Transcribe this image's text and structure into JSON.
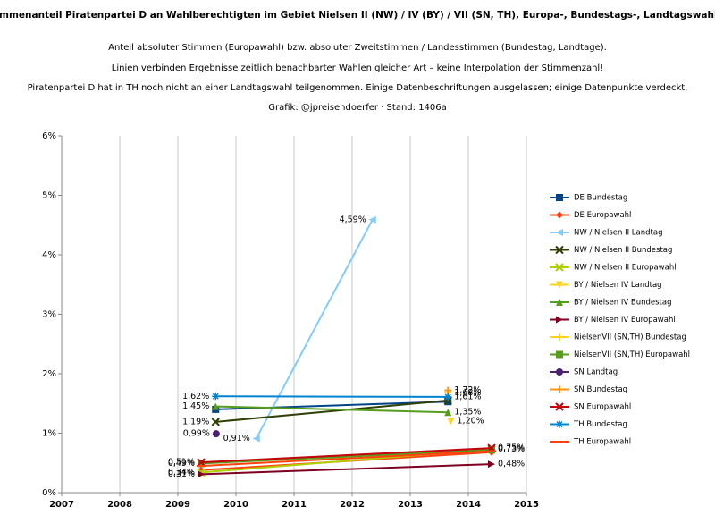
{
  "chart_data": {
    "type": "line",
    "title": "Stimmenanteil Piratenpartei D an Wahlberechtigten im Gebiet Nielsen II (NW) / IV (BY) / VII (SN, TH), Europa-, Bundestags-, Landtagswahlen",
    "subtitle": [
      "Anteil absoluter Stimmen (Europawahl) bzw. absoluter Zweitstimmen / Landesstimmen (Bundestag, Landtage).",
      "Linien verbinden Ergebnisse zeitlich benachbarter Wahlen gleicher Art – keine Interpolation der Stimmenzahl!",
      "Piratenpartei D hat in TH noch nicht an einer Landtagswahl teilgenommen. Einige Datenbeschriftungen ausgelassen; einige Datenpunkte verdeckt.",
      "Grafik: @jpreisendoerfer · Stand: 1406a"
    ],
    "xlim": [
      2007,
      2015
    ],
    "xticks": [
      2007,
      2008,
      2009,
      2010,
      2011,
      2012,
      2013,
      2014,
      2015
    ],
    "ylim": [
      0,
      6
    ],
    "yticks": [
      {
        "value": 0,
        "label": "0%"
      },
      {
        "value": 1,
        "label": "1%"
      },
      {
        "value": 2,
        "label": "2%"
      },
      {
        "value": 3,
        "label": "3%"
      },
      {
        "value": 4,
        "label": "4%"
      },
      {
        "value": 5,
        "label": "5%"
      },
      {
        "value": 6,
        "label": "6%"
      }
    ],
    "grid": "x",
    "series": [
      {
        "name": "DE Bundestag",
        "color": "#004586",
        "marker": "square",
        "x": [
          2009.65,
          2013.65
        ],
        "values": [
          1.4,
          1.53
        ],
        "value_labels": [
          null,
          null
        ]
      },
      {
        "name": "DE Europawahl",
        "color": "#ff420e",
        "marker": "diamond",
        "x": [
          2009.4,
          2014.4
        ],
        "values": [
          0.38,
          0.68
        ],
        "value_labels": [
          null,
          null
        ]
      },
      {
        "name": "NW / Nielsen II Landtag",
        "color": "#83caff",
        "marker": "triangle-left",
        "x": [
          2010.35,
          2012.35
        ],
        "values": [
          0.91,
          4.59
        ],
        "value_labels": [
          "0,91%",
          "4,59%"
        ]
      },
      {
        "name": "NW / Nielsen II Bundestag",
        "color": "#314004",
        "marker": "x",
        "x": [
          2009.65,
          2013.65
        ],
        "values": [
          1.19,
          1.55
        ],
        "value_labels": [
          "1,19%",
          null
        ]
      },
      {
        "name": "NW / Nielsen II Europawahl",
        "color": "#aecf00",
        "marker": "x",
        "x": [
          2009.4,
          2014.4
        ],
        "values": [
          0.34,
          0.73
        ],
        "value_labels": [
          "0,34%",
          "0,73%"
        ]
      },
      {
        "name": "BY / Nielsen IV Landtag",
        "color": "#ffd320",
        "marker": "triangle-down",
        "x": [
          2013.7
        ],
        "values": [
          1.2
        ],
        "value_labels": [
          "1,20%"
        ]
      },
      {
        "name": "BY / Nielsen IV Bundestag",
        "color": "#579d1c",
        "marker": "triangle-up",
        "x": [
          2009.65,
          2013.65
        ],
        "values": [
          1.45,
          1.35
        ],
        "value_labels": [
          "1,45%",
          "1,35%"
        ]
      },
      {
        "name": "BY / Nielsen IV Europawahl",
        "color": "#7e0021",
        "marker": "triangle-right",
        "x": [
          2009.4,
          2014.4
        ],
        "values": [
          0.31,
          0.48
        ],
        "value_labels": [
          "0,31%",
          "0,48%"
        ]
      },
      {
        "name": "NielsenVII (SN,TH) Bundestag",
        "color": "#ffd320",
        "marker": "plus",
        "x": [
          2013.65
        ],
        "values": [
          1.68
        ],
        "value_labels": [
          "1,68%"
        ]
      },
      {
        "name": "NielsenVII (SN,TH) Europawahl",
        "color": "#579d1c",
        "marker": "square",
        "x": [
          2009.4,
          2014.4
        ],
        "values": [
          0.49,
          0.72
        ],
        "value_labels": [
          "0,49%",
          null
        ]
      },
      {
        "name": "SN Landtag",
        "color": "#4b1f6f",
        "marker": "circle",
        "x": [
          2009.66
        ],
        "values": [
          0.99
        ],
        "value_labels": [
          "0,99%"
        ]
      },
      {
        "name": "SN Bundestag",
        "color": "#ff950e",
        "marker": "plus",
        "x": [
          2013.65
        ],
        "values": [
          1.72
        ],
        "value_labels": [
          "1,72%"
        ]
      },
      {
        "name": "SN Europawahl",
        "color": "#c5000b",
        "marker": "x",
        "x": [
          2009.4,
          2014.4
        ],
        "values": [
          0.51,
          0.75
        ],
        "value_labels": [
          "0,51%",
          "0,75%"
        ]
      },
      {
        "name": "TH Bundestag",
        "color": "#0084d1",
        "marker": "star",
        "x": [
          2009.65,
          2013.65
        ],
        "values": [
          1.62,
          1.61
        ],
        "value_labels": [
          "1,62%",
          "1,61%"
        ]
      },
      {
        "name": "TH Europawahl",
        "color": "#ff420e",
        "marker": "dash",
        "x": [
          2009.4,
          2014.4
        ],
        "values": [
          0.45,
          0.7
        ],
        "value_labels": [
          null,
          null
        ]
      }
    ]
  }
}
